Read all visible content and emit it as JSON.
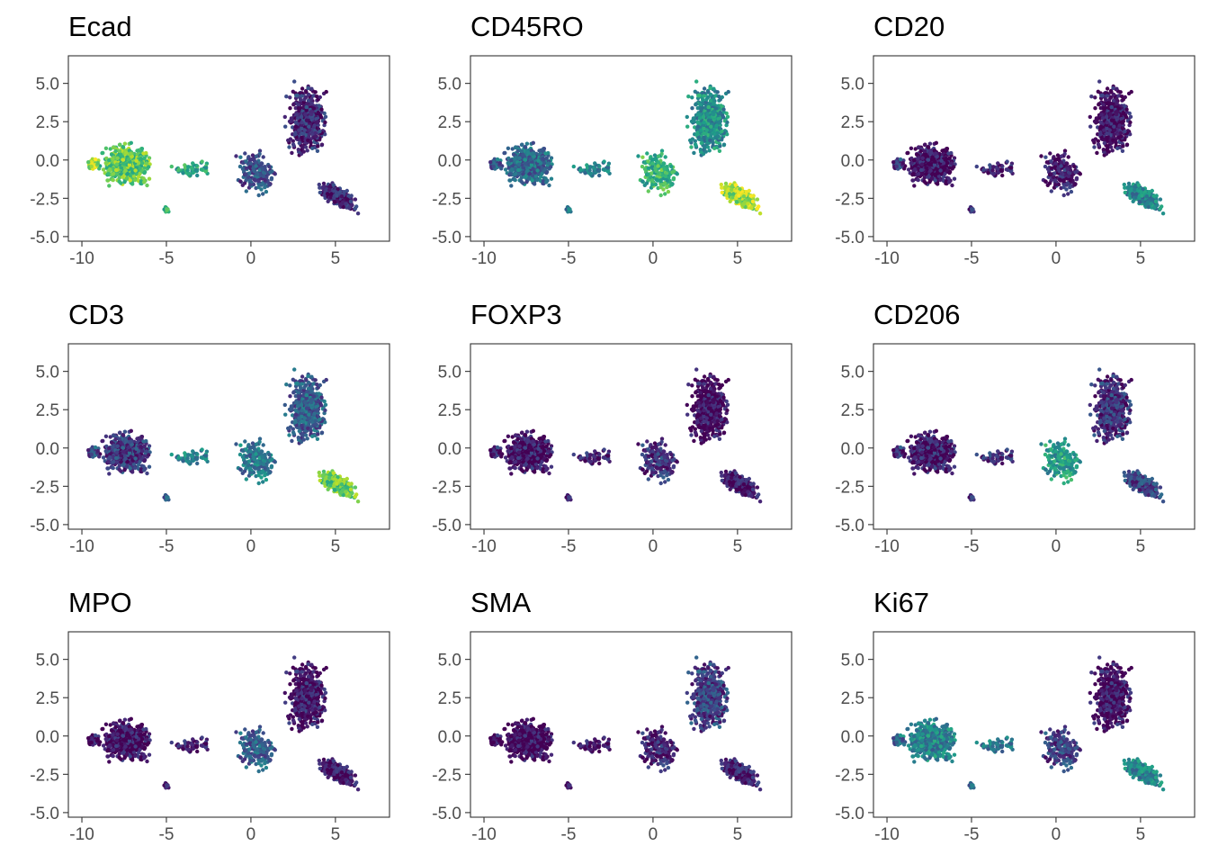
{
  "figure": {
    "xticks": [
      -10,
      -5,
      0,
      5
    ],
    "yticks": [
      -5.0,
      -2.5,
      0.0,
      2.5,
      5.0
    ],
    "xlim": [
      -10.8,
      8.2
    ],
    "ylim": [
      -5.3,
      6.8
    ],
    "colormap": "viridis",
    "colors": [
      "#440154",
      "#3b528b",
      "#21918c",
      "#5ec962",
      "#fde725"
    ],
    "background": "#ffffff",
    "panel_border": "#333333"
  },
  "chart_data": [
    {
      "type": "scatter",
      "title": "Ecad",
      "xlim": [
        -10.8,
        8.2
      ],
      "ylim": [
        -5.3,
        6.8
      ],
      "xticks": [
        -10,
        -5,
        0,
        5
      ],
      "yticks": [
        -5.0,
        -2.5,
        0.0,
        2.5,
        5.0
      ],
      "grid": false,
      "legend": "none",
      "intensity": {
        "left_cluster": 0.75,
        "small_islands": 0.6,
        "mid_branch": 0.25,
        "upper_right": 0.12,
        "lower_right_tail": 0.1,
        "far_left_tip": 0.9,
        "small_bottom_blob": 0.65
      }
    },
    {
      "type": "scatter",
      "title": "CD45RO",
      "xlim": [
        -10.8,
        8.2
      ],
      "ylim": [
        -5.3,
        6.8
      ],
      "xticks": [
        -10,
        -5,
        0,
        5
      ],
      "yticks": [
        -5.0,
        -2.5,
        0.0,
        2.5,
        5.0
      ],
      "grid": false,
      "legend": "none",
      "intensity": {
        "left_cluster": 0.35,
        "small_islands": 0.45,
        "mid_branch": 0.65,
        "upper_right": 0.5,
        "lower_right_tail": 0.85,
        "far_left_tip": 0.3,
        "small_bottom_blob": 0.4
      }
    },
    {
      "type": "scatter",
      "title": "CD20",
      "xlim": [
        -10.8,
        8.2
      ],
      "ylim": [
        -5.3,
        6.8
      ],
      "xticks": [
        -10,
        -5,
        0,
        5
      ],
      "yticks": [
        -5.0,
        -2.5,
        0.0,
        2.5,
        5.0
      ],
      "grid": false,
      "legend": "none",
      "intensity": {
        "left_cluster": 0.05,
        "small_islands": 0.1,
        "mid_branch": 0.08,
        "upper_right": 0.05,
        "lower_right_tail": 0.45,
        "far_left_tip": 0.2,
        "small_bottom_blob": 0.15
      }
    },
    {
      "type": "scatter",
      "title": "CD3",
      "xlim": [
        -10.8,
        8.2
      ],
      "ylim": [
        -5.3,
        6.8
      ],
      "xticks": [
        -10,
        -5,
        0,
        5
      ],
      "yticks": [
        -5.0,
        -2.5,
        0.0,
        2.5,
        5.0
      ],
      "grid": false,
      "legend": "none",
      "intensity": {
        "left_cluster": 0.18,
        "small_islands": 0.45,
        "mid_branch": 0.4,
        "upper_right": 0.3,
        "lower_right_tail": 0.75,
        "far_left_tip": 0.25,
        "small_bottom_blob": 0.3
      }
    },
    {
      "type": "scatter",
      "title": "FOXP3",
      "xlim": [
        -10.8,
        8.2
      ],
      "ylim": [
        -5.3,
        6.8
      ],
      "xticks": [
        -10,
        -5,
        0,
        5
      ],
      "yticks": [
        -5.0,
        -2.5,
        0.0,
        2.5,
        5.0
      ],
      "grid": false,
      "legend": "none",
      "intensity": {
        "left_cluster": 0.06,
        "small_islands": 0.1,
        "mid_branch": 0.15,
        "upper_right": 0.03,
        "lower_right_tail": 0.05,
        "far_left_tip": 0.1,
        "small_bottom_blob": 0.1
      }
    },
    {
      "type": "scatter",
      "title": "CD206",
      "xlim": [
        -10.8,
        8.2
      ],
      "ylim": [
        -5.3,
        6.8
      ],
      "xticks": [
        -10,
        -5,
        0,
        5
      ],
      "yticks": [
        -5.0,
        -2.5,
        0.0,
        2.5,
        5.0
      ],
      "grid": false,
      "legend": "none",
      "intensity": {
        "left_cluster": 0.08,
        "small_islands": 0.15,
        "mid_branch": 0.55,
        "upper_right": 0.15,
        "lower_right_tail": 0.2,
        "far_left_tip": 0.15,
        "small_bottom_blob": 0.15
      }
    },
    {
      "type": "scatter",
      "title": "MPO",
      "xlim": [
        -10.8,
        8.2
      ],
      "ylim": [
        -5.3,
        6.8
      ],
      "xticks": [
        -10,
        -5,
        0,
        5
      ],
      "yticks": [
        -5.0,
        -2.5,
        0.0,
        2.5,
        5.0
      ],
      "grid": false,
      "legend": "none",
      "intensity": {
        "left_cluster": 0.05,
        "small_islands": 0.08,
        "mid_branch": 0.3,
        "upper_right": 0.06,
        "lower_right_tail": 0.05,
        "far_left_tip": 0.05,
        "small_bottom_blob": 0.08
      }
    },
    {
      "type": "scatter",
      "title": "SMA",
      "xlim": [
        -10.8,
        8.2
      ],
      "ylim": [
        -5.3,
        6.8
      ],
      "xticks": [
        -10,
        -5,
        0,
        5
      ],
      "yticks": [
        -5.0,
        -2.5,
        0.0,
        2.5,
        5.0
      ],
      "grid": false,
      "legend": "none",
      "intensity": {
        "left_cluster": 0.02,
        "small_islands": 0.05,
        "mid_branch": 0.1,
        "upper_right": 0.2,
        "lower_right_tail": 0.08,
        "far_left_tip": 0.02,
        "small_bottom_blob": 0.05
      }
    },
    {
      "type": "scatter",
      "title": "Ki67",
      "xlim": [
        -10.8,
        8.2
      ],
      "ylim": [
        -5.3,
        6.8
      ],
      "xticks": [
        -10,
        -5,
        0,
        5
      ],
      "yticks": [
        -5.0,
        -2.5,
        0.0,
        2.5,
        5.0
      ],
      "grid": false,
      "legend": "none",
      "intensity": {
        "left_cluster": 0.45,
        "small_islands": 0.4,
        "mid_branch": 0.2,
        "upper_right": 0.05,
        "lower_right_tail": 0.45,
        "far_left_tip": 0.35,
        "small_bottom_blob": 0.35
      }
    }
  ]
}
